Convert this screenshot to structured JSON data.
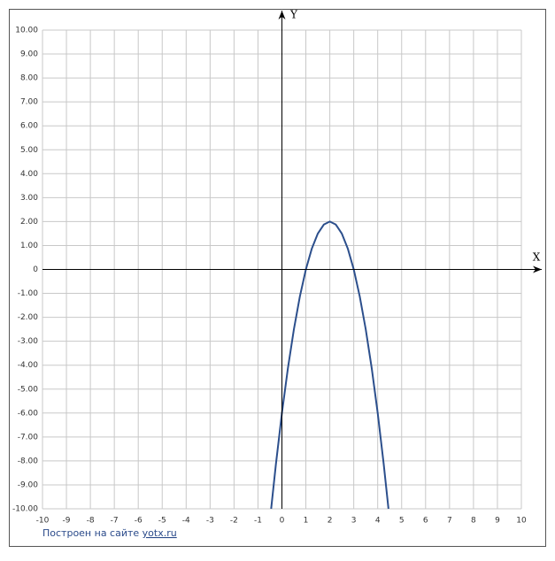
{
  "chart_data": {
    "type": "line",
    "x_label": "X",
    "y_label": "Y",
    "footer_text": "Построен на сайте",
    "footer_link": "yotx.ru",
    "x": [
      -0.45,
      -0.25,
      0,
      0.25,
      0.5,
      0.75,
      1,
      1.25,
      1.5,
      1.75,
      2,
      2.25,
      2.5,
      2.75,
      3,
      3.25,
      3.5,
      3.75,
      4,
      4.25,
      4.45
    ],
    "series": [
      {
        "color": "#2c4f8c",
        "values": [
          -10,
          -8.125,
          -6,
          -4.125,
          -2.5,
          -1.125,
          0,
          0.875,
          1.5,
          1.875,
          2,
          1.875,
          1.5,
          0.875,
          0,
          -1.125,
          -2.5,
          -4.125,
          -6,
          -8.125,
          -10
        ]
      }
    ],
    "xlim": [
      -10,
      10
    ],
    "ylim": [
      -10,
      10
    ],
    "xticks": [
      -10,
      -9,
      -8,
      -7,
      -6,
      -5,
      -4,
      -3,
      -2,
      -1,
      0,
      1,
      2,
      3,
      4,
      5,
      6,
      7,
      8,
      9,
      10
    ],
    "yticks": [
      {
        "value": 10,
        "label": "10.00"
      },
      {
        "value": 9,
        "label": "9.00"
      },
      {
        "value": 8,
        "label": "8.00"
      },
      {
        "value": 7,
        "label": "7.00"
      },
      {
        "value": 6,
        "label": "6.00"
      },
      {
        "value": 5,
        "label": "5.00"
      },
      {
        "value": 4,
        "label": "4.00"
      },
      {
        "value": 3,
        "label": "3.00"
      },
      {
        "value": 2,
        "label": "2.00"
      },
      {
        "value": 1,
        "label": "1.00"
      },
      0,
      {
        "value": -1,
        "label": "-1.00"
      },
      {
        "value": -2,
        "label": "-2.00"
      },
      {
        "value": -3,
        "label": "-3.00"
      },
      {
        "value": -4,
        "label": "-4.00"
      },
      {
        "value": -5,
        "label": "-5.00"
      },
      {
        "value": -6,
        "label": "-6.00"
      },
      {
        "value": -7,
        "label": "-7.00"
      },
      {
        "value": -8,
        "label": "-8.00"
      },
      {
        "value": -9,
        "label": "-9.00"
      },
      {
        "value": -10,
        "label": "-10.00"
      }
    ],
    "grid": true
  }
}
